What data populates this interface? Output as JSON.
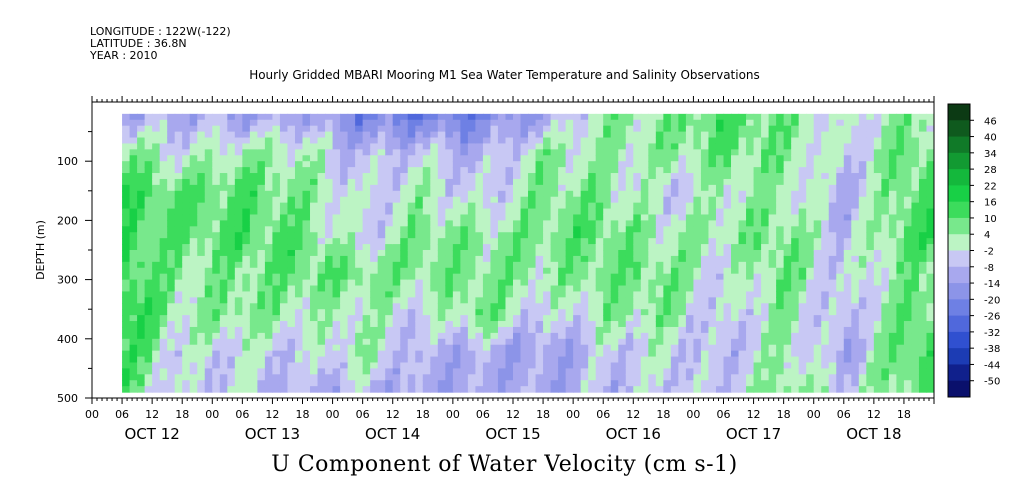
{
  "header": {
    "longitude": "LONGITUDE : 122W(-122)",
    "latitude": "LATITUDE : 36.8N",
    "year": "YEAR : 2010"
  },
  "chart_data": {
    "type": "heatmap",
    "title": "Hourly Gridded MBARI Mooring M1 Sea Water Temperature and Salinity Observations",
    "xlabel": "U Component of Water Velocity (cm s-1)",
    "ylabel": "DEPTH (m)",
    "ylim": [
      500,
      0
    ],
    "y_ticks": [
      "100",
      "200",
      "300",
      "400",
      "500"
    ],
    "x_hour_ticks": [
      "00",
      "06",
      "12",
      "18",
      "00",
      "06",
      "12",
      "18",
      "00",
      "06",
      "12",
      "18",
      "00",
      "06",
      "12",
      "18",
      "00",
      "06",
      "12",
      "18",
      "00",
      "06",
      "12",
      "18",
      "00",
      "06",
      "12",
      "18"
    ],
    "x_day_labels": [
      "OCT 12",
      "OCT 13",
      "OCT 14",
      "OCT 15",
      "OCT 16",
      "OCT 17",
      "OCT 18"
    ],
    "data_extent": {
      "time_start": "OCT 12 06",
      "time_end": "OCT 18 23",
      "depth_top": 20,
      "depth_bottom": 490
    },
    "colorbar": {
      "labels": [
        "46",
        "40",
        "34",
        "28",
        "22",
        "16",
        "10",
        "4",
        "-2",
        "-8",
        "-14",
        "-20",
        "-26",
        "-32",
        "-38",
        "-44",
        "-50"
      ],
      "colors": [
        "#0c3a14",
        "#0f5a1e",
        "#107a28",
        "#129a32",
        "#14b83c",
        "#18d046",
        "#3cdc5c",
        "#78e88c",
        "#bcf4c4",
        "#c8c8f4",
        "#a8a8ee",
        "#8c94e8",
        "#6e80e4",
        "#5068dc",
        "#3050d0",
        "#1c3cb4",
        "#10208c",
        "#0a106c"
      ]
    },
    "vertical_bands": [
      {
        "time": "OCT 12 06",
        "values": [
          -12,
          8,
          12,
          14,
          16,
          18,
          14,
          10
        ]
      },
      {
        "time": "OCT 12 18",
        "values": [
          -10,
          -2,
          10,
          8,
          4,
          2,
          -4,
          -6
        ]
      },
      {
        "time": "OCT 13 06",
        "values": [
          -14,
          4,
          10,
          12,
          6,
          8,
          -2,
          -4
        ]
      },
      {
        "time": "OCT 13 18",
        "values": [
          -12,
          2,
          6,
          8,
          10,
          2,
          -6,
          -10
        ]
      },
      {
        "time": "OCT 14 06",
        "values": [
          -22,
          -8,
          -4,
          -6,
          8,
          2,
          4,
          -8
        ]
      },
      {
        "time": "OCT 14 18",
        "values": [
          -24,
          -4,
          2,
          8,
          6,
          -4,
          -10,
          -12
        ]
      },
      {
        "time": "OCT 15 06",
        "values": [
          -20,
          -10,
          -6,
          4,
          6,
          10,
          -10,
          -12
        ]
      },
      {
        "time": "OCT 15 18",
        "values": [
          -14,
          4,
          6,
          8,
          4,
          -6,
          -14,
          -10
        ]
      },
      {
        "time": "OCT 16 06",
        "values": [
          4,
          2,
          6,
          10,
          8,
          4,
          -6,
          -8
        ]
      },
      {
        "time": "OCT 16 18",
        "values": [
          6,
          4,
          -6,
          2,
          8,
          6,
          -2,
          -4
        ]
      },
      {
        "time": "OCT 17 06",
        "values": [
          12,
          8,
          2,
          4,
          -4,
          -8,
          -10,
          -6
        ]
      },
      {
        "time": "OCT 17 18",
        "values": [
          8,
          6,
          4,
          8,
          10,
          6,
          4,
          8
        ]
      },
      {
        "time": "OCT 18 06",
        "values": [
          -4,
          -6,
          -10,
          -8,
          -6,
          -10,
          -12,
          -4
        ]
      },
      {
        "time": "OCT 18 18",
        "values": [
          4,
          8,
          10,
          12,
          6,
          10,
          12,
          8
        ]
      }
    ]
  }
}
